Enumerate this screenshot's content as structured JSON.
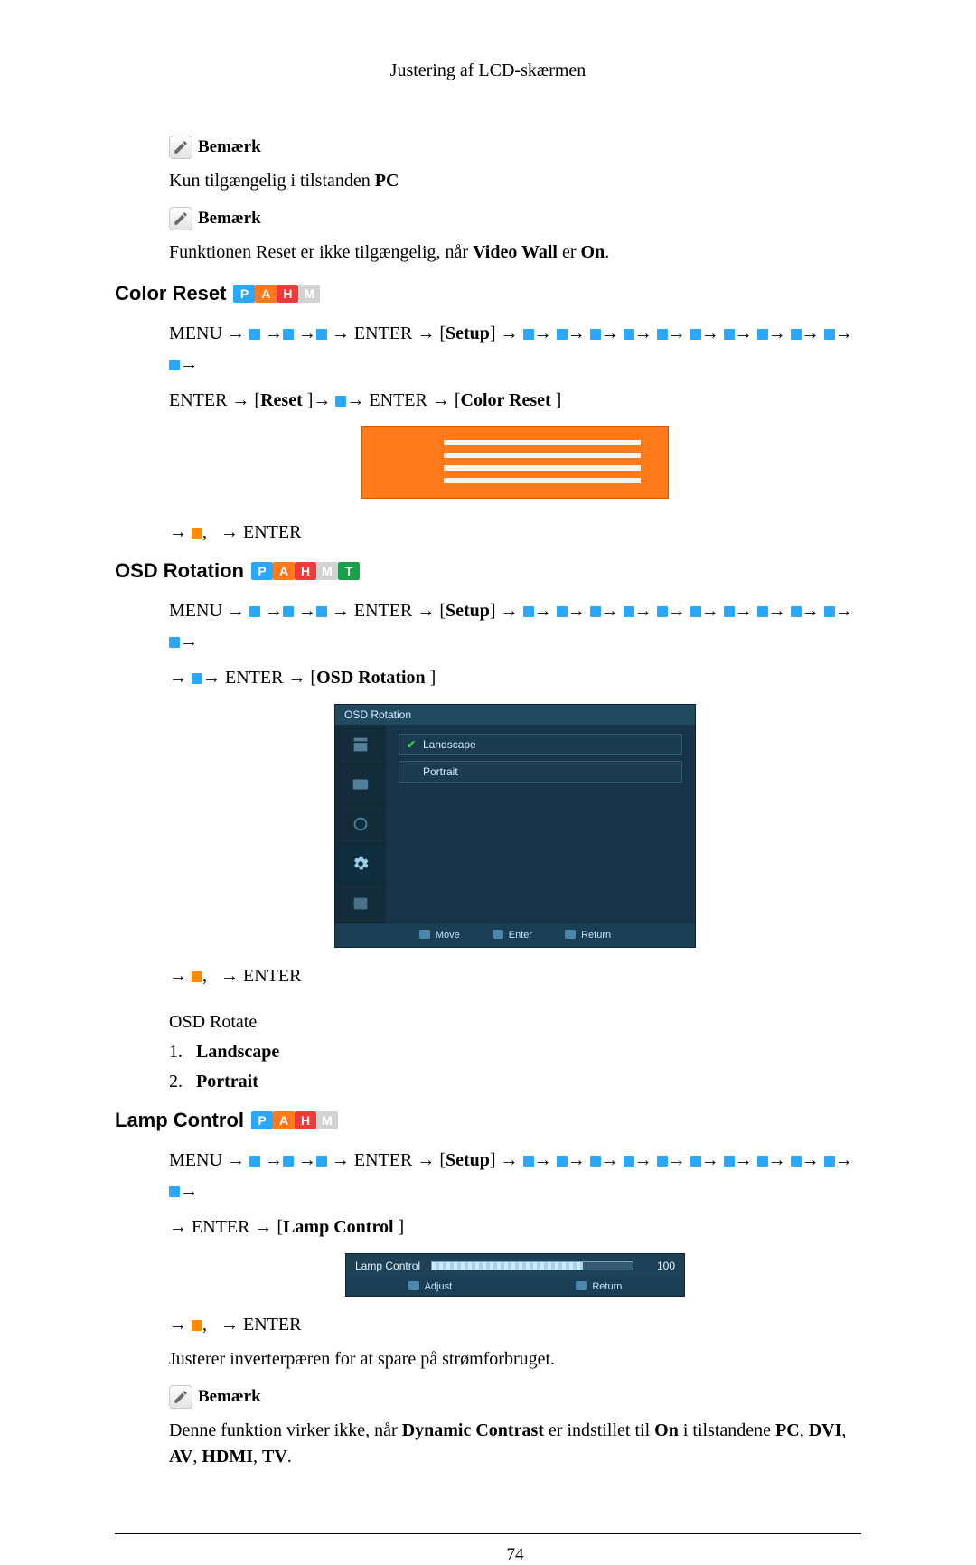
{
  "page": {
    "header": "Justering af LCD-skærmen",
    "number": "74"
  },
  "note_label": "Bemærk",
  "top": {
    "line1_pre": "Kun tilgængelig i tilstanden ",
    "line1_bold": "PC",
    "line2_pre": "Funktionen Reset er ikke tilgængelig, når ",
    "line2_bold1": "Video Wall",
    "line2_mid": " er ",
    "line2_bold2": "On",
    "line2_post": "."
  },
  "badges": {
    "colors": {
      "P": "#2aa7ff",
      "A": "#ff7a1a",
      "H": "#f03a3a",
      "M": "#808080",
      "T": "#1aa04a"
    }
  },
  "color_reset": {
    "title": "Color Reset",
    "badges": [
      "P",
      "A",
      "H",
      "M"
    ],
    "dim": [
      "M"
    ],
    "nav_line1": {
      "menu": "MENU",
      "enter": "ENTER",
      "setup": "Setup",
      "arrows_after_setup": 11
    },
    "nav_line2_pre": "ENTER → [",
    "nav_line2_reset": "Reset",
    "nav_line2_mid1": " ]→ ",
    "nav_line2_mid2": "→ ENTER → [",
    "nav_line2_cr": "Color Reset",
    "nav_line2_post": " ]",
    "after": "→   ,    → ENTER",
    "img": {
      "bg": "#ff7a1a"
    }
  },
  "osd": {
    "title": "OSD Rotation",
    "badges": [
      "P",
      "A",
      "H",
      "M",
      "T"
    ],
    "dim": [
      "M"
    ],
    "nav_line1": {
      "menu": "MENU",
      "enter": "ENTER",
      "setup": "Setup",
      "arrows_after_setup": 11
    },
    "nav_line2": "→   → ENTER → [OSD Rotation ]",
    "after": "→   ,    → ENTER",
    "rotate_label": "OSD Rotate",
    "options": [
      "Landscape",
      "Portrait"
    ],
    "screenshot": {
      "title": "OSD Rotation",
      "items": [
        {
          "label": "Landscape",
          "checked": true
        },
        {
          "label": "Portrait",
          "checked": false
        }
      ],
      "footer": [
        "Move",
        "Enter",
        "Return"
      ],
      "colors": {
        "bg": "#173449",
        "panel": "#1d3a4c",
        "side": "#132c3a",
        "opt_border": "#2f5a72",
        "footer": "#1a3e53"
      }
    }
  },
  "lamp": {
    "title": "Lamp Control",
    "badges": [
      "P",
      "A",
      "H",
      "M"
    ],
    "dim": [
      "M"
    ],
    "nav_line1": {
      "menu": "MENU",
      "enter": "ENTER",
      "setup": "Setup",
      "arrows_after_setup": 11
    },
    "nav_line2": "→ ENTER → [Lamp Control ]",
    "after": "→   ,    → ENTER",
    "screenshot": {
      "label": "Lamp Control",
      "value": "100",
      "fill_pct": 75,
      "footer": [
        "Adjust",
        "Return"
      ]
    },
    "desc": "Justerer inverterpæren for at spare på strømforbruget.",
    "note_pre": "Denne funktion virker ikke, når ",
    "note_b1": "Dynamic Contrast",
    "note_mid1": " er indstillet til ",
    "note_b2": "On",
    "note_mid2": " i tilstandene ",
    "note_b3": "PC",
    "note_c1": ", ",
    "note_b4": "DVI",
    "note_c2": ", ",
    "note_b5": "AV",
    "note_c3": ", ",
    "note_b6": "HDMI",
    "note_c4": ", ",
    "note_b7": "TV",
    "note_post": "."
  }
}
